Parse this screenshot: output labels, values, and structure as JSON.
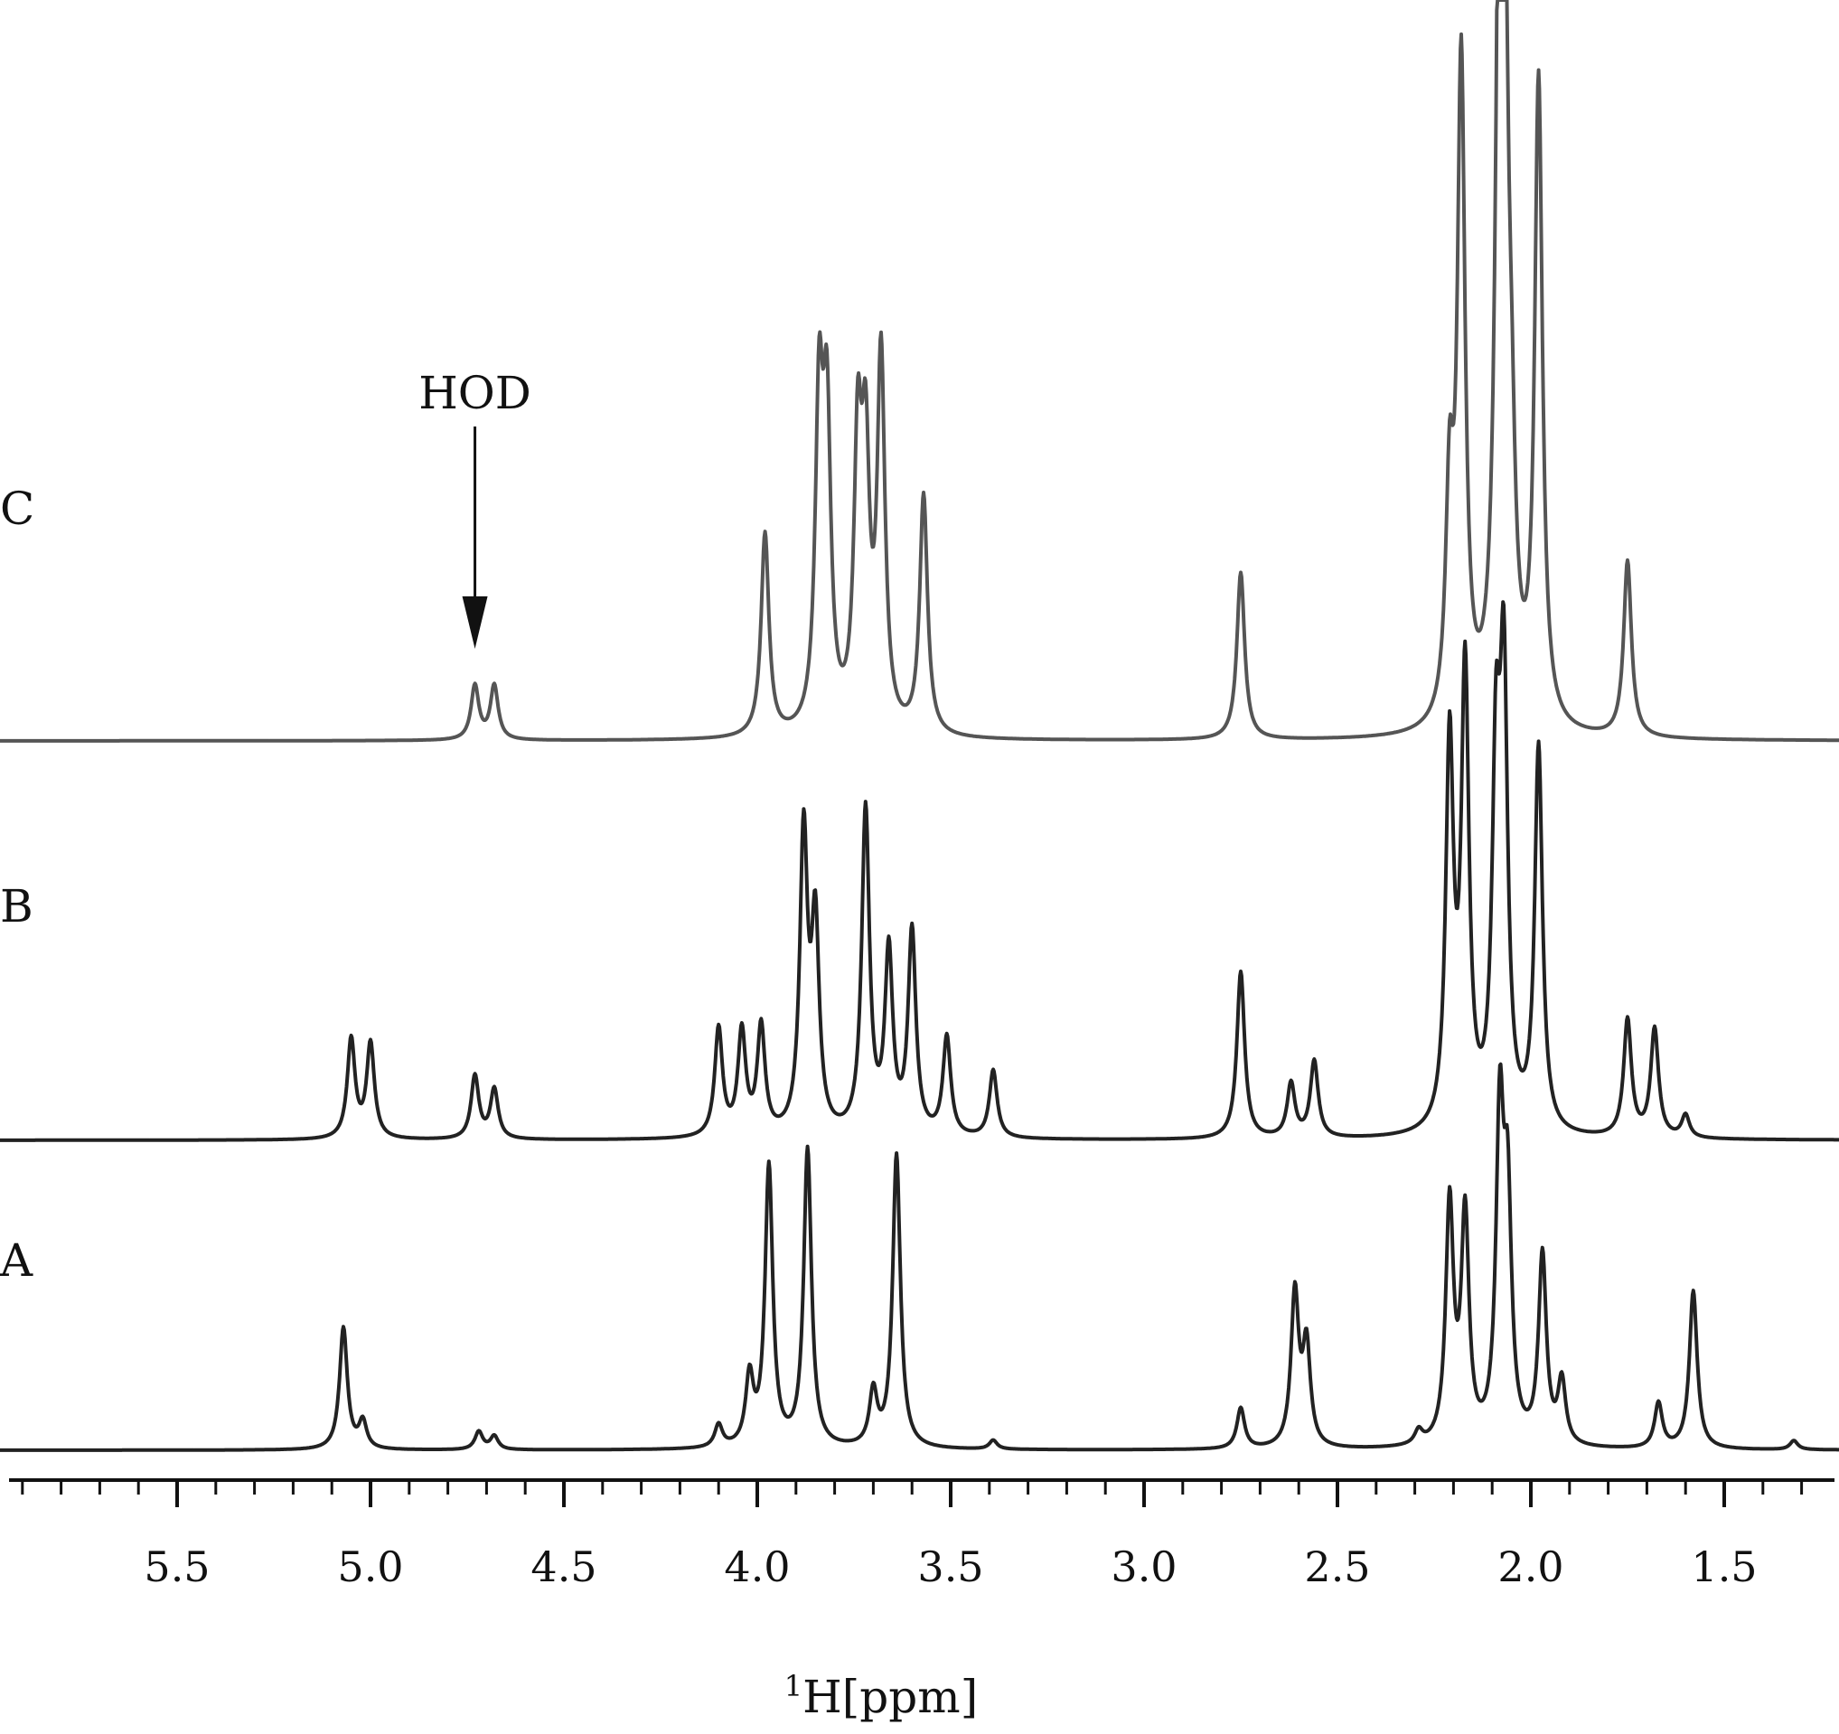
{
  "chart_data": {
    "type": "line",
    "title": "",
    "xlabel_sup": "1",
    "xlabel_main": "H[ppm]",
    "x_reversed": true,
    "xlim": [
      6.0,
      1.0
    ],
    "x_ticks": [
      5.5,
      5.0,
      4.5,
      4.0,
      3.5,
      3.0,
      2.5,
      2.0,
      1.5
    ],
    "x_tick_labels": [
      "5.5",
      "5.0",
      "4.5",
      "4.0",
      "3.5",
      "3.0",
      "2.5",
      "2.0",
      "1.5"
    ],
    "minor_tick_step": 0.1,
    "grid": false,
    "annotation": {
      "text": "HOD",
      "x": 4.73
    },
    "series": [
      {
        "name": "C",
        "color": "#555555",
        "peaks": [
          {
            "x": 4.73,
            "h": 0.12
          },
          {
            "x": 4.68,
            "h": 0.12
          },
          {
            "x": 3.98,
            "h": 0.45
          },
          {
            "x": 3.84,
            "h": 0.7
          },
          {
            "x": 3.82,
            "h": 0.65
          },
          {
            "x": 3.74,
            "h": 0.6
          },
          {
            "x": 3.72,
            "h": 0.55
          },
          {
            "x": 3.68,
            "h": 0.82
          },
          {
            "x": 3.57,
            "h": 0.53
          },
          {
            "x": 2.75,
            "h": 0.37
          },
          {
            "x": 2.21,
            "h": 0.48
          },
          {
            "x": 2.18,
            "h": 1.45
          },
          {
            "x": 2.08,
            "h": 1.6
          },
          {
            "x": 2.07,
            "h": 1.4
          },
          {
            "x": 2.05,
            "h": 0.35
          },
          {
            "x": 1.98,
            "h": 1.42
          },
          {
            "x": 1.75,
            "h": 0.39
          }
        ]
      },
      {
        "name": "B",
        "color": "#222222",
        "peaks": [
          {
            "x": 5.05,
            "h": 0.22
          },
          {
            "x": 5.0,
            "h": 0.21
          },
          {
            "x": 4.73,
            "h": 0.14
          },
          {
            "x": 4.68,
            "h": 0.11
          },
          {
            "x": 4.1,
            "h": 0.24
          },
          {
            "x": 4.04,
            "h": 0.23
          },
          {
            "x": 3.99,
            "h": 0.24
          },
          {
            "x": 3.88,
            "h": 0.66
          },
          {
            "x": 3.85,
            "h": 0.45
          },
          {
            "x": 3.72,
            "h": 0.72
          },
          {
            "x": 3.66,
            "h": 0.4
          },
          {
            "x": 3.6,
            "h": 0.45
          },
          {
            "x": 3.51,
            "h": 0.22
          },
          {
            "x": 3.39,
            "h": 0.15
          },
          {
            "x": 2.75,
            "h": 0.37
          },
          {
            "x": 2.62,
            "h": 0.12
          },
          {
            "x": 2.56,
            "h": 0.17
          },
          {
            "x": 2.21,
            "h": 0.85
          },
          {
            "x": 2.17,
            "h": 1.0
          },
          {
            "x": 2.09,
            "h": 0.75
          },
          {
            "x": 2.07,
            "h": 0.95
          },
          {
            "x": 1.98,
            "h": 0.85
          },
          {
            "x": 1.75,
            "h": 0.26
          },
          {
            "x": 1.68,
            "h": 0.24
          },
          {
            "x": 1.6,
            "h": 0.05
          }
        ]
      },
      {
        "name": "A",
        "color": "#222222",
        "peaks": [
          {
            "x": 5.07,
            "h": 0.27
          },
          {
            "x": 5.02,
            "h": 0.06
          },
          {
            "x": 4.72,
            "h": 0.04
          },
          {
            "x": 4.68,
            "h": 0.03
          },
          {
            "x": 4.1,
            "h": 0.05
          },
          {
            "x": 4.02,
            "h": 0.15
          },
          {
            "x": 3.97,
            "h": 0.62
          },
          {
            "x": 3.87,
            "h": 0.66
          },
          {
            "x": 3.7,
            "h": 0.12
          },
          {
            "x": 3.64,
            "h": 0.65
          },
          {
            "x": 3.39,
            "h": 0.02
          },
          {
            "x": 2.75,
            "h": 0.09
          },
          {
            "x": 2.61,
            "h": 0.34
          },
          {
            "x": 2.58,
            "h": 0.22
          },
          {
            "x": 2.29,
            "h": 0.03
          },
          {
            "x": 2.21,
            "h": 0.53
          },
          {
            "x": 2.17,
            "h": 0.5
          },
          {
            "x": 2.08,
            "h": 0.7
          },
          {
            "x": 2.06,
            "h": 0.5
          },
          {
            "x": 1.97,
            "h": 0.42
          },
          {
            "x": 1.92,
            "h": 0.14
          },
          {
            "x": 1.67,
            "h": 0.1
          },
          {
            "x": 1.58,
            "h": 0.35
          },
          {
            "x": 1.32,
            "h": 0.02
          }
        ]
      }
    ]
  }
}
